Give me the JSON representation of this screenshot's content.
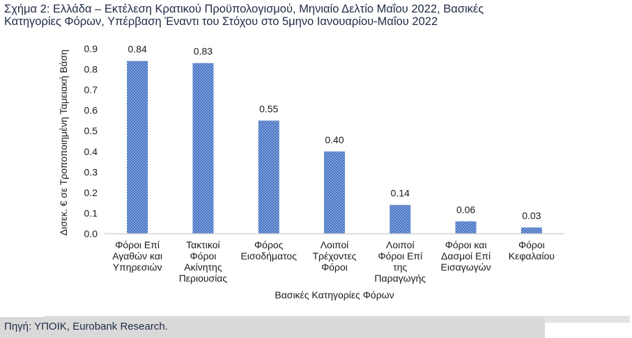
{
  "title_lines": [
    "Σχήμα 2: Ελλάδα – Εκτέλεση Κρατικού Προϋπολογισμού, Μηνιαίο Δελτίο Μαΐου 2022, Βασικές",
    "Κατηγορίες Φόρων, Υπέρβαση Έναντι του Στόχου στο 5μηνο Ιανουαρίου-Μαΐου 2022"
  ],
  "source": "Πηγή: ΥΠΟΙΚ, Eurobank Research.",
  "colors": {
    "bar": "#4472c4",
    "axis": "#bfbfbf",
    "text": "#1a1a1a"
  },
  "chart_data": {
    "type": "bar",
    "categories": [
      [
        "Φόροι Επί",
        "Αγαθών και",
        "Υπηρεσιών"
      ],
      [
        "Τακτικοί",
        "Φόροι",
        "Ακίνητης",
        "Περιουσίας"
      ],
      [
        "Φόρος",
        "Εισοδήματος"
      ],
      [
        "Λοιποί",
        "Τρέχοντες",
        "Φόροι"
      ],
      [
        "Λοιποί",
        "Φόροι Επί",
        "της",
        "Παραγωγής"
      ],
      [
        "Φόροι και",
        "Δασμοί Επί",
        "Εισαγωγών"
      ],
      [
        "Φόροι",
        "Κεφαλαίου"
      ]
    ],
    "values": [
      0.84,
      0.83,
      0.55,
      0.4,
      0.14,
      0.06,
      0.03
    ],
    "data_labels": [
      "0.84",
      "0.83",
      "0.55",
      "0.40",
      "0.14",
      "0.06",
      "0.03"
    ],
    "ylim": [
      0,
      0.9
    ],
    "yticks": [
      "0.0",
      "0.1",
      "0.2",
      "0.3",
      "0.4",
      "0.5",
      "0.6",
      "0.7",
      "0.8",
      "0.9"
    ],
    "xlabel": "Βασικές Κατηγορίες Φόρων",
    "ylabel": "Δισεκ. € σε Τροποποιημένη Ταμειακή Βάση",
    "grid": false,
    "legend": "none"
  }
}
